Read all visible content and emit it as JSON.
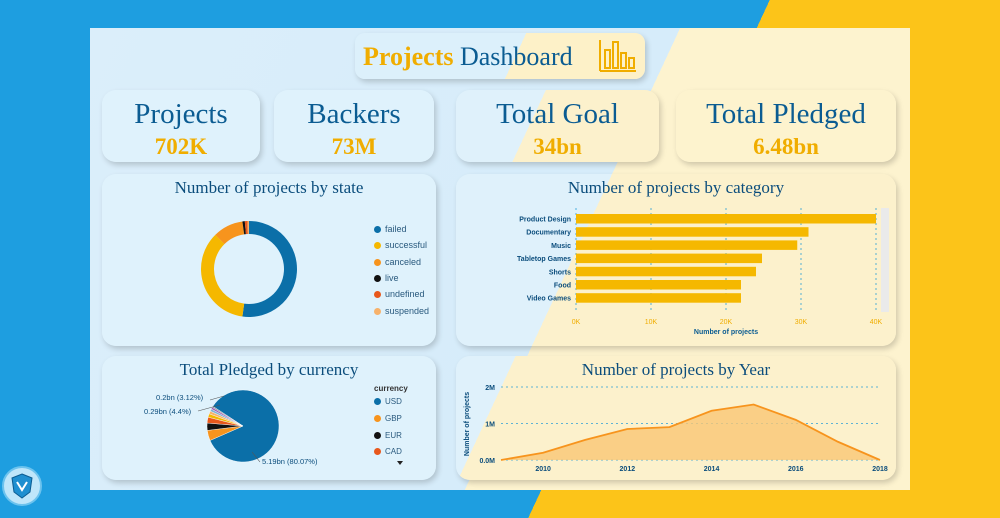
{
  "header": {
    "title_part1": "Projects",
    "title_part2": "Dashboard"
  },
  "kpis": [
    {
      "label": "Projects",
      "value": "702K"
    },
    {
      "label": "Backers",
      "value": "73M"
    },
    {
      "label": "Total Goal",
      "value": "34bn"
    },
    {
      "label": "Total Pledged",
      "value": "6.48bn"
    }
  ],
  "colors": {
    "blue": "#0b6fa8",
    "gold": "#f5b800",
    "orange": "#f7941d",
    "dark": "#111111",
    "red": "#e8581c",
    "peach": "#f7b26b"
  },
  "state_chart": {
    "title": "Number of projects by state",
    "legend": [
      "failed",
      "successful",
      "canceled",
      "live",
      "undefined",
      "suspended"
    ]
  },
  "category_chart": {
    "title": "Number of projects by category",
    "xlabel": "Number of projects",
    "ticks": [
      "0K",
      "10K",
      "20K",
      "30K",
      "40K"
    ]
  },
  "currency_chart": {
    "title": "Total Pledged by currency",
    "legend_title": "currency",
    "legend": [
      "USD",
      "GBP",
      "EUR",
      "CAD"
    ],
    "labels": [
      "0.2bn (3.12%)",
      "0.29bn (4.4%)",
      "5.19bn (80.07%)"
    ]
  },
  "year_chart": {
    "title": "Number of projects by Year",
    "ylabel": "Number of projects",
    "yticks": [
      "2M",
      "1M",
      "0.0M"
    ],
    "xticks": [
      "2010",
      "2012",
      "2014",
      "2016",
      "2018"
    ]
  },
  "chart_data": [
    {
      "type": "pie",
      "title": "Number of projects by state",
      "categories": [
        "failed",
        "successful",
        "canceled",
        "live",
        "undefined",
        "suspended"
      ],
      "values": [
        52.2,
        35.4,
        10.2,
        0.8,
        0.9,
        0.5
      ]
    },
    {
      "type": "bar",
      "title": "Number of projects by category",
      "categories": [
        "Product Design",
        "Documentary",
        "Music",
        "Tabletop Games",
        "Shorts",
        "Food",
        "Video Games"
      ],
      "values": [
        40000,
        31000,
        29500,
        24800,
        24000,
        22000,
        22000
      ],
      "xlabel": "Number of projects",
      "xlim": [
        0,
        40000
      ]
    },
    {
      "type": "pie",
      "title": "Total Pledged by currency",
      "categories": [
        "USD",
        "GBP",
        "EUR",
        "CAD"
      ],
      "values": [
        80.07,
        4.4,
        3.12,
        2.5
      ]
    },
    {
      "type": "area",
      "title": "Number of projects by Year",
      "x": [
        2009,
        2010,
        2011,
        2012,
        2013,
        2014,
        2015,
        2016,
        2017,
        2018
      ],
      "values": [
        0.0,
        0.2,
        0.55,
        0.85,
        0.9,
        1.35,
        1.52,
        1.1,
        0.5,
        0.0
      ],
      "ylabel": "Number of projects",
      "ylim": [
        0,
        2
      ]
    }
  ]
}
